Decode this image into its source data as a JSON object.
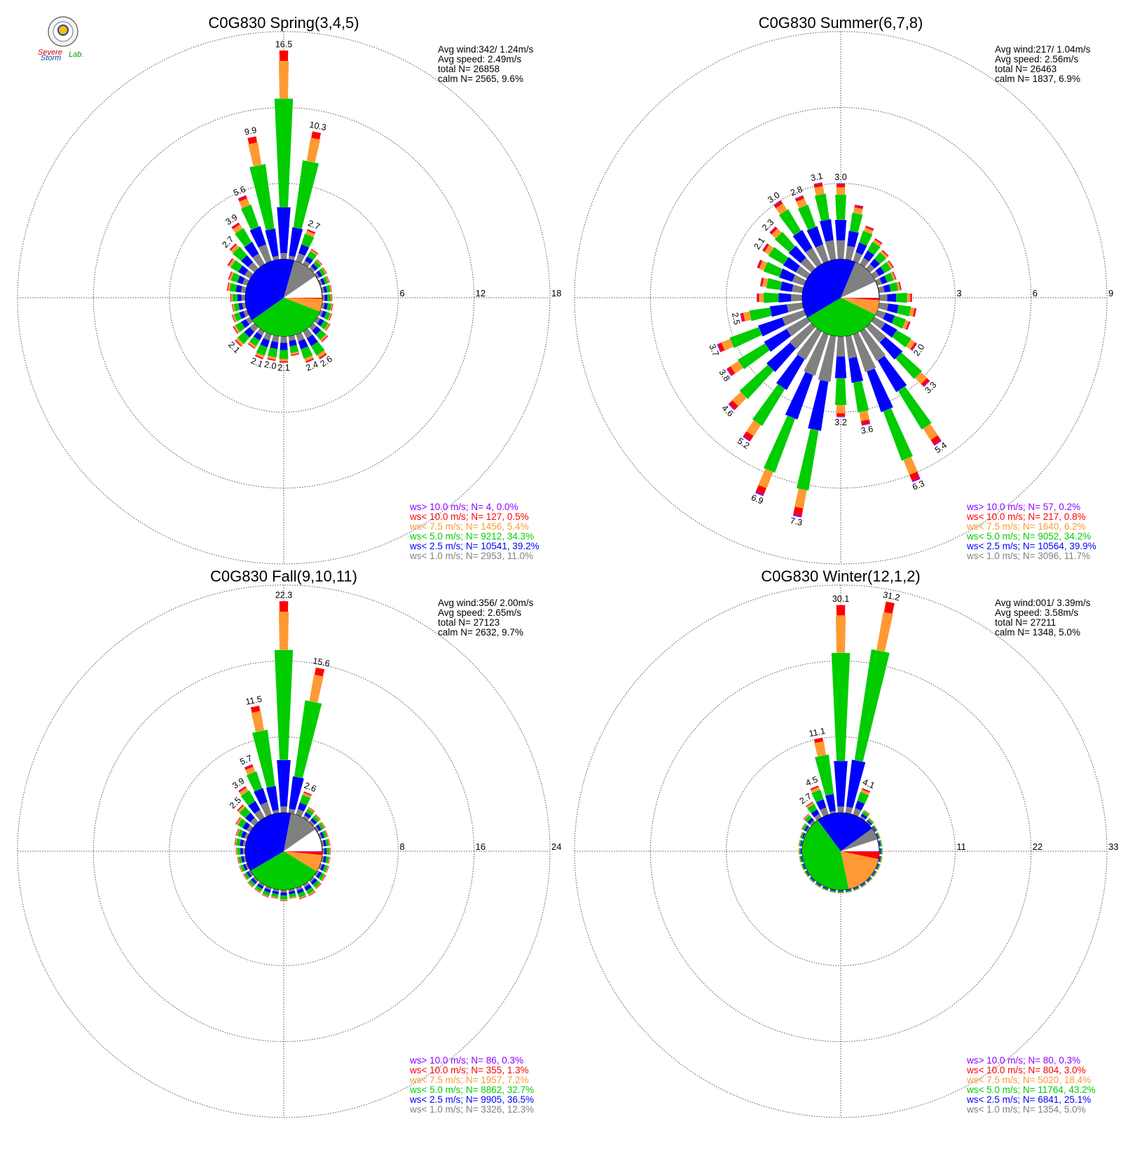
{
  "colors": {
    "gt10": "#8b00ff",
    "lt10": "#ff0000",
    "lt75": "#ff9933",
    "lt50": "#00cc00",
    "lt25": "#0000ff",
    "lt10ms": "#808080"
  },
  "logo": {
    "text1": "Severe",
    "text2": "Storm",
    "text3": "Lab."
  },
  "chart_data": [
    {
      "type": "wind-rose",
      "title": "C0G830 Spring(3,4,5)",
      "stats": [
        "Avg wind:342/ 1.24m/s",
        "Avg speed: 2.49m/s",
        "total N=      26858",
        "calm N=   2565,   9.6%"
      ],
      "rmax": 18,
      "ticks": [
        "6",
        "12",
        "18"
      ],
      "bars": [
        {
          "dir": 0,
          "pct": 16.5,
          "label": "16.5"
        },
        {
          "dir": 11.25,
          "pct": 10.3,
          "label": "10.3"
        },
        {
          "dir": 22.5,
          "pct": 2.7,
          "label": "2.7"
        },
        {
          "dir": 33.75,
          "pct": 1.4
        },
        {
          "dir": 45,
          "pct": 1.0
        },
        {
          "dir": 56.25,
          "pct": 0.9
        },
        {
          "dir": 67.5,
          "pct": 0.8
        },
        {
          "dir": 78.75,
          "pct": 0.8
        },
        {
          "dir": 90,
          "pct": 0.8
        },
        {
          "dir": 101.25,
          "pct": 0.9
        },
        {
          "dir": 112.5,
          "pct": 1.0
        },
        {
          "dir": 123.75,
          "pct": 1.2
        },
        {
          "dir": 135,
          "pct": 1.6
        },
        {
          "dir": 146.25,
          "pct": 2.6,
          "label": "2.6"
        },
        {
          "dir": 157.5,
          "pct": 2.4,
          "label": "2.4"
        },
        {
          "dir": 168.75,
          "pct": 1.6
        },
        {
          "dir": 180,
          "pct": 2.1,
          "label": "2.1"
        },
        {
          "dir": 191.25,
          "pct": 2.0,
          "label": "2.0"
        },
        {
          "dir": 202.5,
          "pct": 2.1,
          "label": "2.1"
        },
        {
          "dir": 213.75,
          "pct": 1.6
        },
        {
          "dir": 225,
          "pct": 2.1,
          "label": "2.1"
        },
        {
          "dir": 236.25,
          "pct": 1.6
        },
        {
          "dir": 247.5,
          "pct": 1.3
        },
        {
          "dir": 258.75,
          "pct": 1.1
        },
        {
          "dir": 270,
          "pct": 1.2
        },
        {
          "dir": 281.25,
          "pct": 1.5
        },
        {
          "dir": 292.5,
          "pct": 1.6
        },
        {
          "dir": 303.75,
          "pct": 2.1
        },
        {
          "dir": 315,
          "pct": 2.7,
          "label": "2.7"
        },
        {
          "dir": 326.25,
          "pct": 3.9,
          "label": "3.9"
        },
        {
          "dir": 337.5,
          "pct": 5.6,
          "label": "5.6"
        },
        {
          "dir": 348.75,
          "pct": 9.9,
          "label": "9.9"
        }
      ],
      "pie": [
        0.0,
        0.5,
        5.4,
        34.3,
        39.2,
        11.0
      ],
      "legend": [
        "ws> 10.0 m/s; N=      4,  0.0%",
        "ws< 10.0 m/s; N=    127,  0.5%",
        "ws<  7.5 m/s; N=   1456,  5.4%",
        "ws<  5.0 m/s; N=   9212, 34.3%",
        "ws<  2.5 m/s; N=  10541, 39.2%",
        "ws<  1.0 m/s; N=   2953, 11.0%"
      ]
    },
    {
      "type": "wind-rose",
      "title": "C0G830 Summer(6,7,8)",
      "stats": [
        "Avg wind:217/ 1.04m/s",
        "Avg speed: 2.56m/s",
        "total N=      26463",
        "calm N=   1837,   6.9%"
      ],
      "rmax": 9,
      "ticks": [
        "3",
        "6",
        "9"
      ],
      "bars": [
        {
          "dir": 0,
          "pct": 3.0,
          "label": "3.0"
        },
        {
          "dir": 11.25,
          "pct": 2.2
        },
        {
          "dir": 22.5,
          "pct": 1.5
        },
        {
          "dir": 33.75,
          "pct": 1.2
        },
        {
          "dir": 45,
          "pct": 1.0
        },
        {
          "dir": 56.25,
          "pct": 0.9
        },
        {
          "dir": 67.5,
          "pct": 0.8
        },
        {
          "dir": 78.75,
          "pct": 0.9
        },
        {
          "dir": 90,
          "pct": 1.3
        },
        {
          "dir": 101.25,
          "pct": 1.5
        },
        {
          "dir": 112.5,
          "pct": 1.4
        },
        {
          "dir": 123.75,
          "pct": 2.0,
          "label": "2.0"
        },
        {
          "dir": 135,
          "pct": 3.3,
          "label": "3.3"
        },
        {
          "dir": 146.25,
          "pct": 5.4,
          "label": "5.4"
        },
        {
          "dir": 157.5,
          "pct": 6.3,
          "label": "6.3"
        },
        {
          "dir": 168.75,
          "pct": 3.6,
          "label": "3.6"
        },
        {
          "dir": 180,
          "pct": 3.2,
          "label": "3.2"
        },
        {
          "dir": 191.25,
          "pct": 7.3,
          "label": "7.3"
        },
        {
          "dir": 202.5,
          "pct": 6.9,
          "label": "6.9"
        },
        {
          "dir": 213.75,
          "pct": 5.2,
          "label": "5.2"
        },
        {
          "dir": 225,
          "pct": 4.6,
          "label": "4.6"
        },
        {
          "dir": 236.25,
          "pct": 3.8,
          "label": "3.8"
        },
        {
          "dir": 247.5,
          "pct": 3.7,
          "label": "3.7"
        },
        {
          "dir": 258.75,
          "pct": 2.5,
          "label": "2.5"
        },
        {
          "dir": 270,
          "pct": 1.8
        },
        {
          "dir": 281.25,
          "pct": 1.7
        },
        {
          "dir": 292.5,
          "pct": 2.0
        },
        {
          "dir": 303.75,
          "pct": 2.1,
          "label": "2.1"
        },
        {
          "dir": 315,
          "pct": 2.3,
          "label": "2.3"
        },
        {
          "dir": 326.25,
          "pct": 3.0,
          "label": "3.0"
        },
        {
          "dir": 337.5,
          "pct": 2.8,
          "label": "2.8"
        },
        {
          "dir": 348.75,
          "pct": 3.1,
          "label": "3.1"
        }
      ],
      "pie": [
        0.2,
        0.8,
        6.2,
        34.2,
        39.9,
        11.7
      ],
      "legend": [
        "ws> 10.0 m/s; N=     57,  0.2%",
        "ws< 10.0 m/s; N=    217,  0.8%",
        "ws<  7.5 m/s; N=   1640,  6.2%",
        "ws<  5.0 m/s; N=   9052, 34.2%",
        "ws<  2.5 m/s; N=  10564, 39.9%",
        "ws<  1.0 m/s; N=   3096, 11.7%"
      ]
    },
    {
      "type": "wind-rose",
      "title": "C0G830 Fall(9,10,11)",
      "stats": [
        "Avg wind:356/ 2.00m/s",
        "Avg speed: 2.65m/s",
        "total N=      27123",
        "calm N=   2632,   9.7%"
      ],
      "rmax": 24,
      "ticks": [
        "8",
        "16",
        "24"
      ],
      "bars": [
        {
          "dir": 0,
          "pct": 22.3,
          "label": "22.3"
        },
        {
          "dir": 11.25,
          "pct": 15.6,
          "label": "15.6"
        },
        {
          "dir": 22.5,
          "pct": 2.6,
          "label": "2.6"
        },
        {
          "dir": 33.75,
          "pct": 1.3
        },
        {
          "dir": 45,
          "pct": 1.1
        },
        {
          "dir": 56.25,
          "pct": 1.0
        },
        {
          "dir": 67.5,
          "pct": 0.9
        },
        {
          "dir": 78.75,
          "pct": 0.9
        },
        {
          "dir": 90,
          "pct": 0.9
        },
        {
          "dir": 101.25,
          "pct": 0.9
        },
        {
          "dir": 112.5,
          "pct": 1.0
        },
        {
          "dir": 123.75,
          "pct": 1.1
        },
        {
          "dir": 135,
          "pct": 1.2
        },
        {
          "dir": 146.25,
          "pct": 1.4
        },
        {
          "dir": 157.5,
          "pct": 1.3
        },
        {
          "dir": 168.75,
          "pct": 1.0
        },
        {
          "dir": 180,
          "pct": 1.2
        },
        {
          "dir": 191.25,
          "pct": 1.0
        },
        {
          "dir": 202.5,
          "pct": 1.1
        },
        {
          "dir": 213.75,
          "pct": 1.0
        },
        {
          "dir": 225,
          "pct": 1.0
        },
        {
          "dir": 236.25,
          "pct": 0.9
        },
        {
          "dir": 247.5,
          "pct": 0.9
        },
        {
          "dir": 258.75,
          "pct": 0.9
        },
        {
          "dir": 270,
          "pct": 1.0
        },
        {
          "dir": 281.25,
          "pct": 1.2
        },
        {
          "dir": 292.5,
          "pct": 1.3
        },
        {
          "dir": 303.75,
          "pct": 1.8
        },
        {
          "dir": 315,
          "pct": 2.5,
          "label": "2.5"
        },
        {
          "dir": 326.25,
          "pct": 3.9,
          "label": "3.9"
        },
        {
          "dir": 337.5,
          "pct": 5.7,
          "label": "5.7"
        },
        {
          "dir": 348.75,
          "pct": 11.5,
          "label": "11.5"
        }
      ],
      "pie": [
        0.3,
        1.3,
        7.2,
        32.7,
        36.5,
        12.3
      ],
      "legend": [
        "ws> 10.0 m/s; N=     86,  0.3%",
        "ws< 10.0 m/s; N=    355,  1.3%",
        "ws<  7.5 m/s; N=   1957,  7.2%",
        "ws<  5.0 m/s; N=   8862, 32.7%",
        "ws<  2.5 m/s; N=   9905, 36.5%",
        "ws<  1.0 m/s; N=   3326, 12.3%"
      ]
    },
    {
      "type": "wind-rose",
      "title": "C0G830 Winter(12,1,2)",
      "stats": [
        "Avg wind:001/ 3.39m/s",
        "Avg speed: 3.58m/s",
        "total N=      27211",
        "calm N=   1348,   5.0%"
      ],
      "rmax": 33,
      "ticks": [
        "11",
        "22",
        "33"
      ],
      "bars": [
        {
          "dir": 0,
          "pct": 30.1,
          "label": "30.1"
        },
        {
          "dir": 11.25,
          "pct": 31.2,
          "label": "31.2"
        },
        {
          "dir": 22.5,
          "pct": 4.1,
          "label": "4.1"
        },
        {
          "dir": 33.75,
          "pct": 1.3
        },
        {
          "dir": 45,
          "pct": 0.8
        },
        {
          "dir": 56.25,
          "pct": 0.6
        },
        {
          "dir": 67.5,
          "pct": 0.5
        },
        {
          "dir": 78.75,
          "pct": 0.5
        },
        {
          "dir": 90,
          "pct": 0.5
        },
        {
          "dir": 101.25,
          "pct": 0.5
        },
        {
          "dir": 112.5,
          "pct": 0.5
        },
        {
          "dir": 123.75,
          "pct": 0.5
        },
        {
          "dir": 135,
          "pct": 0.5
        },
        {
          "dir": 146.25,
          "pct": 0.5
        },
        {
          "dir": 157.5,
          "pct": 0.5
        },
        {
          "dir": 168.75,
          "pct": 0.5
        },
        {
          "dir": 180,
          "pct": 0.5
        },
        {
          "dir": 191.25,
          "pct": 0.5
        },
        {
          "dir": 202.5,
          "pct": 0.5
        },
        {
          "dir": 213.75,
          "pct": 0.5
        },
        {
          "dir": 225,
          "pct": 0.5
        },
        {
          "dir": 236.25,
          "pct": 0.5
        },
        {
          "dir": 247.5,
          "pct": 0.5
        },
        {
          "dir": 258.75,
          "pct": 0.5
        },
        {
          "dir": 270,
          "pct": 0.5
        },
        {
          "dir": 281.25,
          "pct": 0.6
        },
        {
          "dir": 292.5,
          "pct": 0.7
        },
        {
          "dir": 303.75,
          "pct": 1.0
        },
        {
          "dir": 315,
          "pct": 1.6
        },
        {
          "dir": 326.25,
          "pct": 2.7,
          "label": "2.7"
        },
        {
          "dir": 337.5,
          "pct": 4.5,
          "label": "4.5"
        },
        {
          "dir": 348.75,
          "pct": 11.1,
          "label": "11.1"
        }
      ],
      "pie": [
        0.3,
        3.0,
        18.4,
        43.2,
        25.1,
        5.0
      ],
      "legend": [
        "ws> 10.0 m/s; N=     80,  0.3%",
        "ws< 10.0 m/s; N=    804,  3.0%",
        "ws<  7.5 m/s; N=   5020, 18.4%",
        "ws<  5.0 m/s; N=  11764, 43.2%",
        "ws<  2.5 m/s; N=   6841, 25.1%",
        "ws<  1.0 m/s; N=   1354,  5.0%"
      ]
    }
  ]
}
